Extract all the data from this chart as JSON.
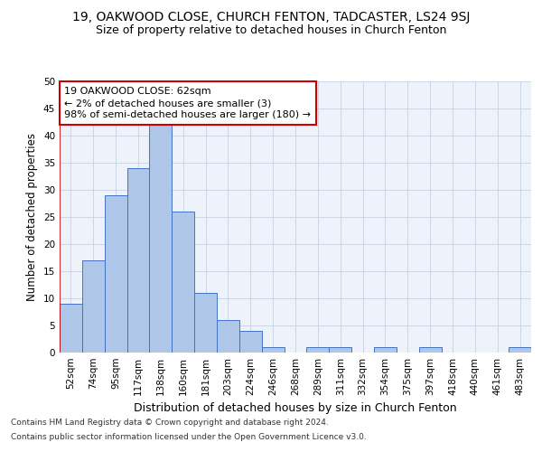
{
  "title1": "19, OAKWOOD CLOSE, CHURCH FENTON, TADCASTER, LS24 9SJ",
  "title2": "Size of property relative to detached houses in Church Fenton",
  "xlabel": "Distribution of detached houses by size in Church Fenton",
  "ylabel": "Number of detached properties",
  "footer1": "Contains HM Land Registry data © Crown copyright and database right 2024.",
  "footer2": "Contains public sector information licensed under the Open Government Licence v3.0.",
  "categories": [
    "52sqm",
    "74sqm",
    "95sqm",
    "117sqm",
    "138sqm",
    "160sqm",
    "181sqm",
    "203sqm",
    "224sqm",
    "246sqm",
    "268sqm",
    "289sqm",
    "311sqm",
    "332sqm",
    "354sqm",
    "375sqm",
    "397sqm",
    "418sqm",
    "440sqm",
    "461sqm",
    "483sqm"
  ],
  "values": [
    9,
    17,
    29,
    34,
    42,
    26,
    11,
    6,
    4,
    1,
    0,
    1,
    1,
    0,
    1,
    0,
    1,
    0,
    0,
    0,
    1
  ],
  "bar_color": "#aec6e8",
  "bar_edge_color": "#4472c4",
  "annotation_line1": "19 OAKWOOD CLOSE: 62sqm",
  "annotation_line2": "← 2% of detached houses are smaller (3)",
  "annotation_line3": "98% of semi-detached houses are larger (180) →",
  "annotation_box_color": "#ffffff",
  "annotation_box_edge_color": "#cc0000",
  "ylim": [
    0,
    50
  ],
  "yticks": [
    0,
    5,
    10,
    15,
    20,
    25,
    30,
    35,
    40,
    45,
    50
  ],
  "background_color": "#eef2fa",
  "grid_color": "#c8d0e0",
  "title1_fontsize": 10,
  "title2_fontsize": 9,
  "xlabel_fontsize": 9,
  "ylabel_fontsize": 8.5,
  "tick_fontsize": 7.5,
  "annotation_fontsize": 8,
  "footer_fontsize": 6.5
}
